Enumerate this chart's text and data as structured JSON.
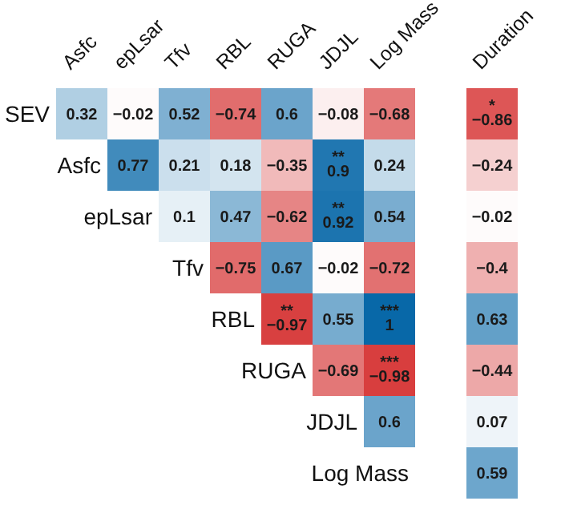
{
  "chart_data": {
    "type": "heatmap",
    "categories": [
      "Asfc",
      "epLsar",
      "Tfv",
      "RBL",
      "RUGA",
      "JDJL",
      "Log Mass",
      null,
      "Duration"
    ],
    "y_categories": [
      "SEV",
      "Asfc",
      "epLsar",
      "Tfv",
      "RBL",
      "RUGA",
      "JDJL",
      "Log Mass"
    ],
    "cells": [
      [
        0.32,
        -0.02,
        0.52,
        -0.74,
        0.6,
        -0.08,
        -0.68,
        null,
        -0.86
      ],
      [
        null,
        0.77,
        0.21,
        0.18,
        -0.35,
        0.9,
        0.24,
        null,
        -0.24
      ],
      [
        null,
        null,
        0.1,
        0.47,
        -0.62,
        0.92,
        0.54,
        null,
        -0.02
      ],
      [
        null,
        null,
        null,
        -0.75,
        0.67,
        -0.02,
        -0.72,
        null,
        -0.4
      ],
      [
        null,
        null,
        null,
        null,
        -0.97,
        0.55,
        1,
        null,
        0.63
      ],
      [
        null,
        null,
        null,
        null,
        null,
        -0.69,
        -0.98,
        null,
        -0.44
      ],
      [
        null,
        null,
        null,
        null,
        null,
        null,
        0.6,
        null,
        0.07
      ],
      [
        null,
        null,
        null,
        null,
        null,
        null,
        null,
        null,
        0.59
      ]
    ],
    "cell_labels": [
      [
        "0.32",
        "−0.02",
        "0.52",
        "−0.74",
        "0.6",
        "−0.08",
        "−0.68",
        null,
        "*\n−0.86"
      ],
      [
        null,
        "0.77",
        "0.21",
        "0.18",
        "−0.35",
        "**\n0.9",
        "0.24",
        null,
        "−0.24"
      ],
      [
        null,
        null,
        "0.1",
        "0.47",
        "−0.62",
        "**\n0.92",
        "0.54",
        null,
        "−0.02"
      ],
      [
        null,
        null,
        null,
        "−0.75",
        "0.67",
        "−0.02",
        "−0.72",
        null,
        "−0.4"
      ],
      [
        null,
        null,
        null,
        null,
        "**\n−0.97",
        "0.55",
        "***\n1",
        null,
        "0.63"
      ],
      [
        null,
        null,
        null,
        null,
        null,
        "−0.69",
        "***\n−0.98",
        null,
        "−0.44"
      ],
      [
        null,
        null,
        null,
        null,
        null,
        null,
        "0.6",
        null,
        "0.07"
      ],
      [
        null,
        null,
        null,
        null,
        null,
        null,
        null,
        null,
        "0.59"
      ]
    ]
  }
}
